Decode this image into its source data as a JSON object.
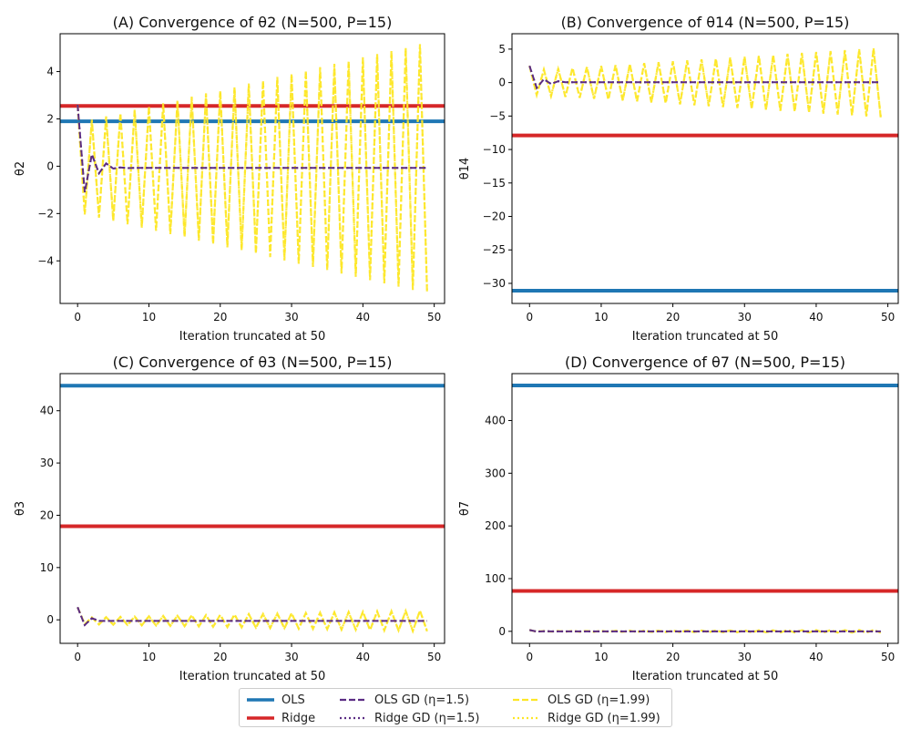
{
  "chart_data": [
    {
      "type": "line",
      "title": "(A) Convergence of θ2 (N=500, P=15)",
      "xlabel": "Iteration truncated at 50",
      "ylabel": "θ2",
      "xlim": [
        -2.45,
        51.45
      ],
      "ylim": [
        -5.8,
        5.6
      ],
      "xticks": [
        0,
        10,
        20,
        30,
        40,
        50
      ],
      "yticks": [
        -4,
        -2,
        0,
        2,
        4
      ],
      "hlines": [
        {
          "name": "OLS",
          "y": 1.9
        },
        {
          "name": "Ridge",
          "y": 2.55
        }
      ],
      "start_value": 2.6,
      "gd_slow": {
        "values": [
          2.6,
          -1.1,
          0.5,
          -0.3,
          0.12,
          -0.1,
          -0.05,
          -0.08,
          -0.07,
          -0.07,
          -0.07,
          -0.07,
          -0.07,
          -0.07,
          -0.07,
          -0.07,
          -0.07,
          -0.07,
          -0.07,
          -0.07,
          -0.07,
          -0.07,
          -0.07,
          -0.07,
          -0.07,
          -0.07,
          -0.07,
          -0.07,
          -0.07,
          -0.07,
          -0.07,
          -0.07,
          -0.07,
          -0.07,
          -0.07,
          -0.07,
          -0.07,
          -0.07,
          -0.07,
          -0.07,
          -0.07,
          -0.07,
          -0.07,
          -0.07,
          -0.07,
          -0.07,
          -0.07,
          -0.07,
          -0.07,
          -0.07
        ]
      },
      "gd_fast": {
        "center": -0.07,
        "amp_start": 1.9,
        "amp_end": 5.3
      }
    },
    {
      "type": "line",
      "title": "(B) Convergence of θ14 (N=500, P=15)",
      "xlabel": "Iteration truncated at 50",
      "ylabel": "θ14",
      "xlim": [
        -2.45,
        51.45
      ],
      "ylim": [
        -33.0,
        7.3
      ],
      "xticks": [
        0,
        10,
        20,
        30,
        40,
        50
      ],
      "yticks": [
        -30,
        -25,
        -20,
        -15,
        -10,
        -5,
        0,
        5
      ],
      "hlines": [
        {
          "name": "OLS",
          "y": -31.1
        },
        {
          "name": "Ridge",
          "y": -7.9
        }
      ],
      "start_value": 2.5,
      "gd_slow": {
        "values": [
          2.5,
          -0.8,
          0.5,
          -0.2,
          0.2,
          0.05,
          0.05,
          0.05,
          0.05,
          0.05,
          0.05,
          0.05,
          0.05,
          0.05,
          0.05,
          0.05,
          0.05,
          0.05,
          0.05,
          0.05,
          0.05,
          0.05,
          0.05,
          0.05,
          0.05,
          0.05,
          0.05,
          0.05,
          0.05,
          0.05,
          0.05,
          0.05,
          0.05,
          0.05,
          0.05,
          0.05,
          0.05,
          0.05,
          0.05,
          0.05,
          0.05,
          0.05,
          0.05,
          0.05,
          0.05,
          0.05,
          0.05,
          0.05,
          0.05,
          0.05
        ]
      },
      "gd_fast": {
        "center": 0.0,
        "amp_start": 1.8,
        "amp_end": 5.2
      }
    },
    {
      "type": "line",
      "title": "(C) Convergence of θ3 (N=500, P=15)",
      "xlabel": "Iteration truncated at 50",
      "ylabel": "θ3",
      "xlim": [
        -2.45,
        51.45
      ],
      "ylim": [
        -4.5,
        47.1
      ],
      "xticks": [
        0,
        10,
        20,
        30,
        40,
        50
      ],
      "yticks": [
        0,
        10,
        20,
        30,
        40
      ],
      "hlines": [
        {
          "name": "OLS",
          "y": 44.8
        },
        {
          "name": "Ridge",
          "y": 17.9
        }
      ],
      "start_value": 2.4,
      "gd_slow": {
        "values": [
          2.4,
          -1.0,
          0.3,
          -0.2,
          -0.2,
          -0.2,
          -0.2,
          -0.2,
          -0.2,
          -0.2,
          -0.2,
          -0.2,
          -0.2,
          -0.2,
          -0.2,
          -0.2,
          -0.2,
          -0.2,
          -0.2,
          -0.2,
          -0.2,
          -0.2,
          -0.2,
          -0.2,
          -0.2,
          -0.2,
          -0.2,
          -0.2,
          -0.2,
          -0.2,
          -0.2,
          -0.2,
          -0.2,
          -0.2,
          -0.2,
          -0.2,
          -0.2,
          -0.2,
          -0.2,
          -0.2,
          -0.2,
          -0.2,
          -0.2,
          -0.2,
          -0.2,
          -0.2,
          -0.2,
          -0.2,
          -0.2,
          -0.2
        ]
      },
      "gd_fast": {
        "center": -0.2,
        "amp_start": 0.6,
        "amp_end": 2.0
      }
    },
    {
      "type": "line",
      "title": "(D) Convergence of θ7 (N=500, P=15)",
      "xlabel": "Iteration truncated at 50",
      "ylabel": "θ7",
      "xlim": [
        -2.45,
        51.45
      ],
      "ylim": [
        -22.8,
        489.0
      ],
      "xticks": [
        0,
        10,
        20,
        30,
        40,
        50
      ],
      "yticks": [
        0,
        100,
        200,
        300,
        400
      ],
      "hlines": [
        {
          "name": "OLS",
          "y": 466.6
        },
        {
          "name": "Ridge",
          "y": 76.6
        }
      ],
      "start_value": 2.5,
      "gd_slow": {
        "values": [
          2.5,
          -0.5,
          0.2,
          0.0,
          0.0,
          0.0,
          0.0,
          0.0,
          0.0,
          0.0,
          0.0,
          0.0,
          0.0,
          0.0,
          0.0,
          0.0,
          0.0,
          0.0,
          0.0,
          0.0,
          0.0,
          0.0,
          0.0,
          0.0,
          0.0,
          0.0,
          0.0,
          0.0,
          0.0,
          0.0,
          0.0,
          0.0,
          0.0,
          0.0,
          0.0,
          0.0,
          0.0,
          0.0,
          0.0,
          0.0,
          0.0,
          0.0,
          0.0,
          0.0,
          0.0,
          0.0,
          0.0,
          0.0,
          0.0,
          0.0
        ]
      },
      "gd_fast": {
        "center": 0.0,
        "amp_start": 0.5,
        "amp_end": 2.5
      }
    }
  ],
  "legend": [
    {
      "label": "OLS",
      "color": "#1f77b4",
      "style": "solid"
    },
    {
      "label": "Ridge",
      "color": "#d62728",
      "style": "solid"
    },
    {
      "label": "OLS GD (η=1.5)",
      "color": "#5b2c83",
      "style": "dashed"
    },
    {
      "label": "Ridge GD (η=1.5)",
      "color": "#5b2c83",
      "style": "dotted"
    },
    {
      "label": "OLS GD (η=1.99)",
      "color": "#fde725",
      "style": "dashed"
    },
    {
      "label": "Ridge GD (η=1.99)",
      "color": "#fde725",
      "style": "dotted"
    }
  ],
  "colors": {
    "ols": "#1f77b4",
    "ridge": "#d62728",
    "gd_slow": "#5b2c83",
    "gd_fast": "#fde725"
  }
}
